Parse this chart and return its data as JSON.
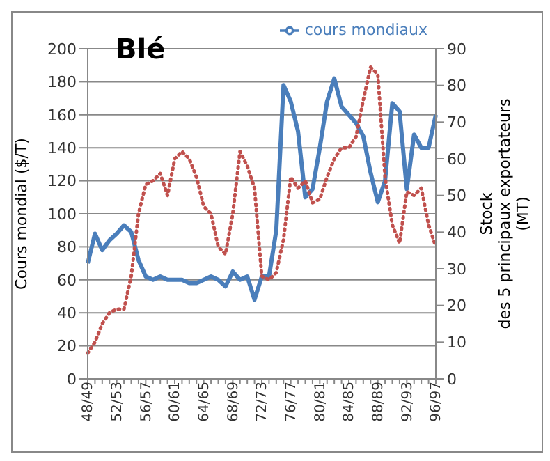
{
  "chart_data": {
    "type": "line",
    "title": "Blé",
    "ylabel": "Cours mondial ($/T)",
    "y2label": "Stock\ndes 5 principaux exportateurs\n(MT)",
    "categories": [
      "48/49",
      null,
      null,
      null,
      "52/53",
      null,
      null,
      null,
      "56/57",
      null,
      null,
      null,
      "60/61",
      null,
      null,
      null,
      "64/65",
      null,
      null,
      null,
      "68/69",
      null,
      null,
      null,
      "72/73",
      null,
      null,
      null,
      "76/77",
      null,
      null,
      null,
      "80/81",
      null,
      null,
      null,
      "84/85",
      null,
      null,
      null,
      "88/89",
      null,
      null,
      null,
      "92/93",
      null,
      null,
      null,
      "96/97"
    ],
    "series": [
      {
        "name": "cours mondiaux",
        "color": "#4a7ebb",
        "line_style": "solid",
        "values": [
          70,
          88,
          78,
          84,
          88,
          93,
          89,
          72,
          62,
          60,
          62,
          60,
          60,
          60,
          58,
          58,
          60,
          62,
          60,
          56,
          65,
          60,
          62,
          48,
          62,
          62,
          90,
          178,
          168,
          150,
          110,
          115,
          140,
          168,
          182,
          165,
          160,
          155,
          147,
          125,
          107,
          120,
          167,
          162,
          115,
          148,
          140,
          140,
          160
        ]
      },
      {
        "color": "#c0504d",
        "axis": "y2",
        "line_style": "dotted",
        "values": [
          7,
          10,
          15,
          18,
          19,
          19,
          28,
          45,
          53,
          54,
          56,
          50,
          60,
          62,
          60,
          55,
          47,
          45,
          36,
          34,
          45,
          62,
          58,
          52,
          28,
          27,
          29,
          38,
          55,
          52,
          54,
          48,
          49,
          55,
          60,
          63,
          63,
          66,
          76,
          85,
          83,
          55,
          42,
          37,
          51,
          50,
          52,
          42,
          36
        ]
      }
    ],
    "ylim": [
      0,
      200
    ],
    "yticks": [
      0,
      20,
      40,
      60,
      80,
      100,
      120,
      140,
      160,
      180,
      200
    ],
    "y2lim": [
      0,
      90
    ],
    "y2ticks": [
      0,
      10,
      20,
      30,
      40,
      50,
      60,
      70,
      80,
      90
    ],
    "grid": "y",
    "legend": "top right",
    "marker": "none"
  }
}
